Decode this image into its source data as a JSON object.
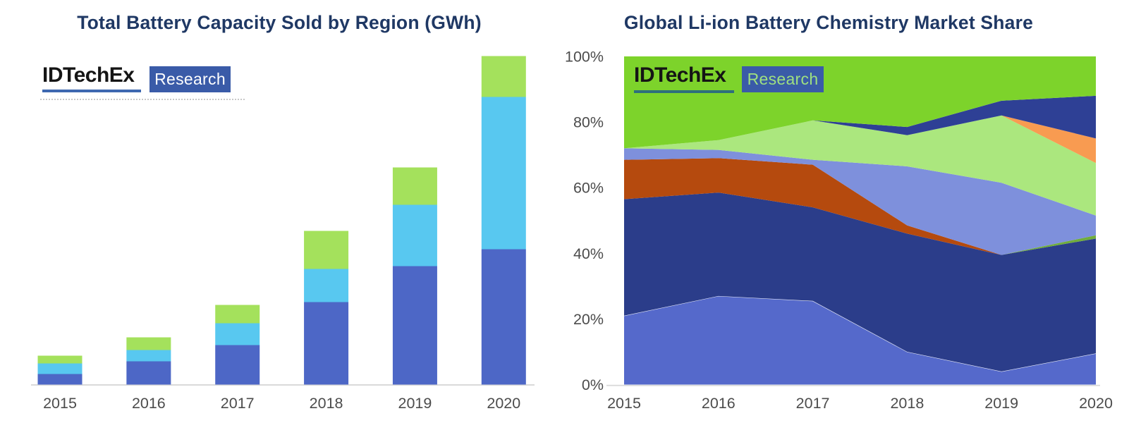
{
  "colors": {
    "title": "#1F3864",
    "axis_label": "#4C4C4C",
    "axis_line": "#D9D9D9",
    "background": "#FFFFFF",
    "logo_wordmark_text": "#151515",
    "logo_box_fill": "#3A5BA8",
    "logo_box_text_left": "#FFFFFF",
    "logo_box_text_right": "#9FE080",
    "logo_underline_left": "#3E68B0",
    "logo_underline_right": "#2E6F7D"
  },
  "branding": {
    "wordmark": "IDTechEx",
    "box_label": "Research"
  },
  "left_chart": {
    "title": "Total Battery Capacity Sold by Region (GWh)",
    "x_labels": [
      "2015",
      "2016",
      "2017",
      "2018",
      "2019",
      "2020"
    ],
    "y_axis_note": "no y-axis ticks or gridlines shown"
  },
  "right_chart": {
    "title": "Global Li-ion Battery Chemistry Market Share",
    "x_labels": [
      "2015",
      "2016",
      "2017",
      "2018",
      "2019",
      "2020"
    ],
    "y_labels": [
      "0%",
      "20%",
      "40%",
      "60%",
      "80%",
      "100%"
    ]
  },
  "chart_data": [
    {
      "type": "bar",
      "stacked": true,
      "title": "Total Battery Capacity Sold by Region (GWh)",
      "categories": [
        "2015",
        "2016",
        "2017",
        "2018",
        "2019",
        "2020"
      ],
      "series": [
        {
          "name": "royal-blue",
          "color": "#4D67C6",
          "values": [
            15,
            33,
            56,
            117,
            168,
            192
          ]
        },
        {
          "name": "sky-blue",
          "color": "#58C8F0",
          "values": [
            15,
            16,
            31,
            47,
            87,
            216
          ]
        },
        {
          "name": "lime-green",
          "color": "#A4E15C",
          "values": [
            11,
            18,
            26,
            54,
            53,
            58
          ]
        }
      ],
      "stack_totals": [
        41,
        67,
        113,
        218,
        308,
        466
      ],
      "units": "GWh (y-axis unlabeled in image; values are relative estimated heights)",
      "legend": "none",
      "gridlines": false,
      "ylim": [
        0,
        470
      ]
    },
    {
      "type": "area",
      "stacked": true,
      "normalized_percent": true,
      "title": "Global Li-ion Battery Chemistry Market Share",
      "x": [
        "2015",
        "2016",
        "2017",
        "2018",
        "2019",
        "2020"
      ],
      "y_ticks": [
        "0%",
        "20%",
        "40%",
        "60%",
        "80%",
        "100%"
      ],
      "series_order": "bottom to top",
      "series": [
        {
          "name": "cornflower-blue",
          "color": "#5569CB",
          "values": [
            21,
            27,
            25.5,
            10,
            4,
            9.5
          ]
        },
        {
          "name": "dark-navy",
          "color": "#2B3D8A",
          "values": [
            35.5,
            31.5,
            28.5,
            36,
            35.5,
            35
          ]
        },
        {
          "name": "brick-red",
          "color": "#B54A0E",
          "values": [
            12,
            10.5,
            13,
            2.5,
            0,
            0
          ]
        },
        {
          "name": "olive-green",
          "color": "#70AD3C",
          "values": [
            0,
            0,
            0,
            0,
            0,
            1
          ]
        },
        {
          "name": "light-periwinkle",
          "color": "#7E90DC",
          "values": [
            3.5,
            2.5,
            1.5,
            18,
            22,
            6
          ]
        },
        {
          "name": "pale-green",
          "color": "#ABE77E",
          "values": [
            0,
            3,
            12,
            9.5,
            20.5,
            16
          ]
        },
        {
          "name": "orange",
          "color": "#F89B51",
          "values": [
            0,
            0,
            0,
            0,
            0,
            7.5
          ]
        },
        {
          "name": "royal-blue-wedge",
          "color": "#2E4095",
          "values": [
            0,
            0,
            0,
            2.5,
            4.5,
            13
          ]
        },
        {
          "name": "bright-green",
          "color": "#7DD32B",
          "values": [
            28,
            25.5,
            19.5,
            21.5,
            13.5,
            12
          ]
        }
      ],
      "legend": "none",
      "gridlines": false,
      "ylim": [
        0,
        100
      ],
      "units": "% market share (series unlabeled in image; named by fill color)"
    }
  ]
}
